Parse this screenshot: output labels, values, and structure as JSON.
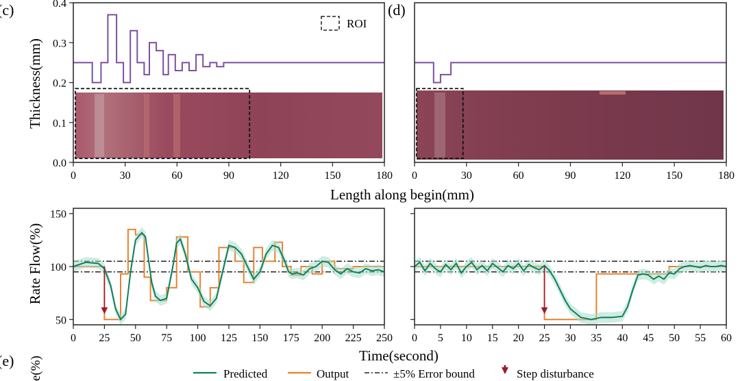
{
  "colors": {
    "thickness": "#7b4fa0",
    "predicted": "#0e7f5c",
    "predicted_band": "#a8dccb",
    "output": "#e8822e",
    "disturbance": "#9b1b2e",
    "bound": "#222222",
    "sample": "#9e4a5c"
  },
  "labels": {
    "panel_c": "(c)",
    "panel_d": "(d)",
    "panel_e": "(e)",
    "roi": "ROI",
    "thickness_ylabel": "Thickness(mm)",
    "length_xlabel": "Length along begin(mm)",
    "flow_ylabel": "Rate Flow(%)",
    "time_xlabel": "Time(second)",
    "e_ylabel_fragment": "e(%)"
  },
  "legend": {
    "predicted": "Predicted",
    "output": "Output",
    "bound": "±5% Error bound",
    "disturbance": "Step disturbance"
  },
  "chart_data": [
    {
      "id": "c",
      "type": "line",
      "xlim": [
        0,
        180
      ],
      "ylim": [
        0,
        0.4
      ],
      "xticks": [
        "0",
        "30",
        "60",
        "90",
        "120",
        "150",
        "180"
      ],
      "yticks": [
        "0.0",
        "0.1",
        "0.2",
        "0.3",
        "0.4"
      ],
      "roi_x": [
        0,
        102
      ],
      "roi_y": [
        0.01,
        0.185
      ],
      "series": [
        {
          "x": [
            0,
            11,
            11,
            16,
            16,
            20,
            20,
            25,
            25,
            29,
            29,
            33,
            33,
            37,
            37,
            41,
            41,
            44,
            44,
            48,
            48,
            52,
            52,
            55,
            55,
            59,
            59,
            63,
            63,
            67,
            67,
            71,
            71,
            75,
            75,
            79,
            79,
            83,
            83,
            87,
            87,
            91,
            91,
            180
          ],
          "y": [
            0.25,
            0.25,
            0.2,
            0.2,
            0.25,
            0.25,
            0.37,
            0.37,
            0.25,
            0.25,
            0.2,
            0.2,
            0.33,
            0.33,
            0.25,
            0.25,
            0.22,
            0.22,
            0.3,
            0.3,
            0.28,
            0.28,
            0.22,
            0.22,
            0.27,
            0.27,
            0.23,
            0.23,
            0.25,
            0.25,
            0.23,
            0.23,
            0.27,
            0.27,
            0.24,
            0.24,
            0.25,
            0.25,
            0.24,
            0.24,
            0.25,
            0.25,
            0.25,
            0.25
          ]
        }
      ]
    },
    {
      "id": "d",
      "type": "line",
      "xlim": [
        0,
        180
      ],
      "ylim": [
        0,
        0.4
      ],
      "xticks": [
        "0",
        "30",
        "60",
        "90",
        "120",
        "150",
        "180"
      ],
      "roi_x": [
        0,
        28
      ],
      "roi_y": [
        0.01,
        0.185
      ],
      "series": [
        {
          "x": [
            0,
            11,
            11,
            15,
            15,
            21,
            21,
            180
          ],
          "y": [
            0.25,
            0.25,
            0.2,
            0.2,
            0.22,
            0.22,
            0.25,
            0.25
          ]
        }
      ]
    },
    {
      "id": "flow-left",
      "type": "line",
      "xlim": [
        0,
        250
      ],
      "ylim": [
        45,
        155
      ],
      "xticks": [
        "0",
        "25",
        "50",
        "75",
        "100",
        "125",
        "150",
        "175",
        "200",
        "225",
        "250"
      ],
      "yticks": [
        "50",
        "100",
        "150"
      ],
      "bounds": [
        105,
        95
      ],
      "disturbance": {
        "x": 25,
        "y_from": 100,
        "y_to": 50
      },
      "series": [
        {
          "name": "Output",
          "x": [
            0,
            25,
            25,
            38,
            38,
            44,
            44,
            50,
            50,
            57,
            57,
            62,
            62,
            75,
            75,
            83,
            83,
            92,
            92,
            102,
            102,
            110,
            110,
            117,
            117,
            130,
            130,
            137,
            137,
            145,
            145,
            152,
            152,
            162,
            162,
            168,
            168,
            175,
            175,
            183,
            183,
            192,
            192,
            200,
            200,
            210,
            210,
            225,
            225,
            250
          ],
          "y": [
            100,
            100,
            50,
            50,
            93,
            93,
            135,
            135,
            130,
            130,
            90,
            90,
            68,
            68,
            80,
            80,
            128,
            128,
            95,
            95,
            62,
            62,
            80,
            80,
            118,
            118,
            105,
            105,
            85,
            85,
            118,
            118,
            105,
            105,
            123,
            123,
            100,
            100,
            92,
            92,
            100,
            100,
            93,
            93,
            105,
            105,
            98,
            98,
            100,
            100
          ]
        },
        {
          "name": "Predicted",
          "x": [
            0,
            10,
            20,
            25,
            30,
            34,
            38,
            42,
            46,
            50,
            55,
            58,
            60,
            63,
            66,
            70,
            75,
            80,
            83,
            86,
            90,
            95,
            100,
            105,
            110,
            115,
            120,
            125,
            130,
            135,
            140,
            145,
            150,
            155,
            160,
            165,
            170,
            173,
            176,
            180,
            185,
            190,
            195,
            200,
            205,
            210,
            215,
            220,
            225,
            230,
            235,
            240,
            245,
            250
          ],
          "y": [
            100,
            104,
            103,
            98,
            82,
            60,
            50,
            55,
            95,
            125,
            132,
            128,
            110,
            85,
            72,
            68,
            70,
            100,
            122,
            126,
            112,
            88,
            80,
            67,
            63,
            70,
            95,
            120,
            118,
            112,
            100,
            88,
            95,
            112,
            120,
            118,
            105,
            95,
            93,
            94,
            92,
            98,
            100,
            105,
            104,
            97,
            93,
            98,
            95,
            94,
            98,
            96,
            97,
            95
          ]
        }
      ]
    },
    {
      "id": "flow-right",
      "type": "line",
      "xlim": [
        0,
        60
      ],
      "ylim": [
        45,
        155
      ],
      "xticks": [
        "0",
        "5",
        "10",
        "15",
        "20",
        "25",
        "30",
        "35",
        "40",
        "45",
        "50",
        "55",
        "60"
      ],
      "bounds": [
        105,
        95
      ],
      "disturbance": {
        "x": 25,
        "y_from": 100,
        "y_to": 50
      },
      "series": [
        {
          "name": "Output",
          "x": [
            0,
            25,
            25,
            35,
            35,
            49,
            49,
            60
          ],
          "y": [
            100,
            100,
            50,
            50,
            93,
            93,
            100,
            100
          ]
        },
        {
          "name": "Predicted",
          "x": [
            0,
            1,
            2,
            3,
            4,
            5,
            6,
            7,
            8,
            9,
            10,
            11,
            12,
            13,
            14,
            15,
            16,
            17,
            18,
            19,
            20,
            21,
            22,
            23,
            24,
            25,
            26,
            27,
            28,
            29,
            30,
            31,
            32,
            33,
            34,
            35,
            36,
            38,
            40,
            41,
            42,
            43,
            44,
            45,
            46,
            47,
            48,
            49,
            50,
            51,
            52,
            53,
            54,
            55,
            56,
            57,
            58,
            59,
            60
          ],
          "y": [
            100,
            104,
            96,
            103,
            98,
            95,
            102,
            97,
            103,
            94,
            100,
            104,
            97,
            101,
            96,
            103,
            99,
            95,
            101,
            98,
            103,
            96,
            102,
            99,
            97,
            101,
            96,
            88,
            78,
            68,
            60,
            56,
            52,
            51,
            50,
            51,
            52,
            52,
            53,
            62,
            78,
            92,
            93,
            92,
            88,
            91,
            88,
            94,
            93,
            98,
            100,
            101,
            100,
            99,
            101,
            100,
            100,
            101,
            100
          ]
        }
      ]
    }
  ]
}
